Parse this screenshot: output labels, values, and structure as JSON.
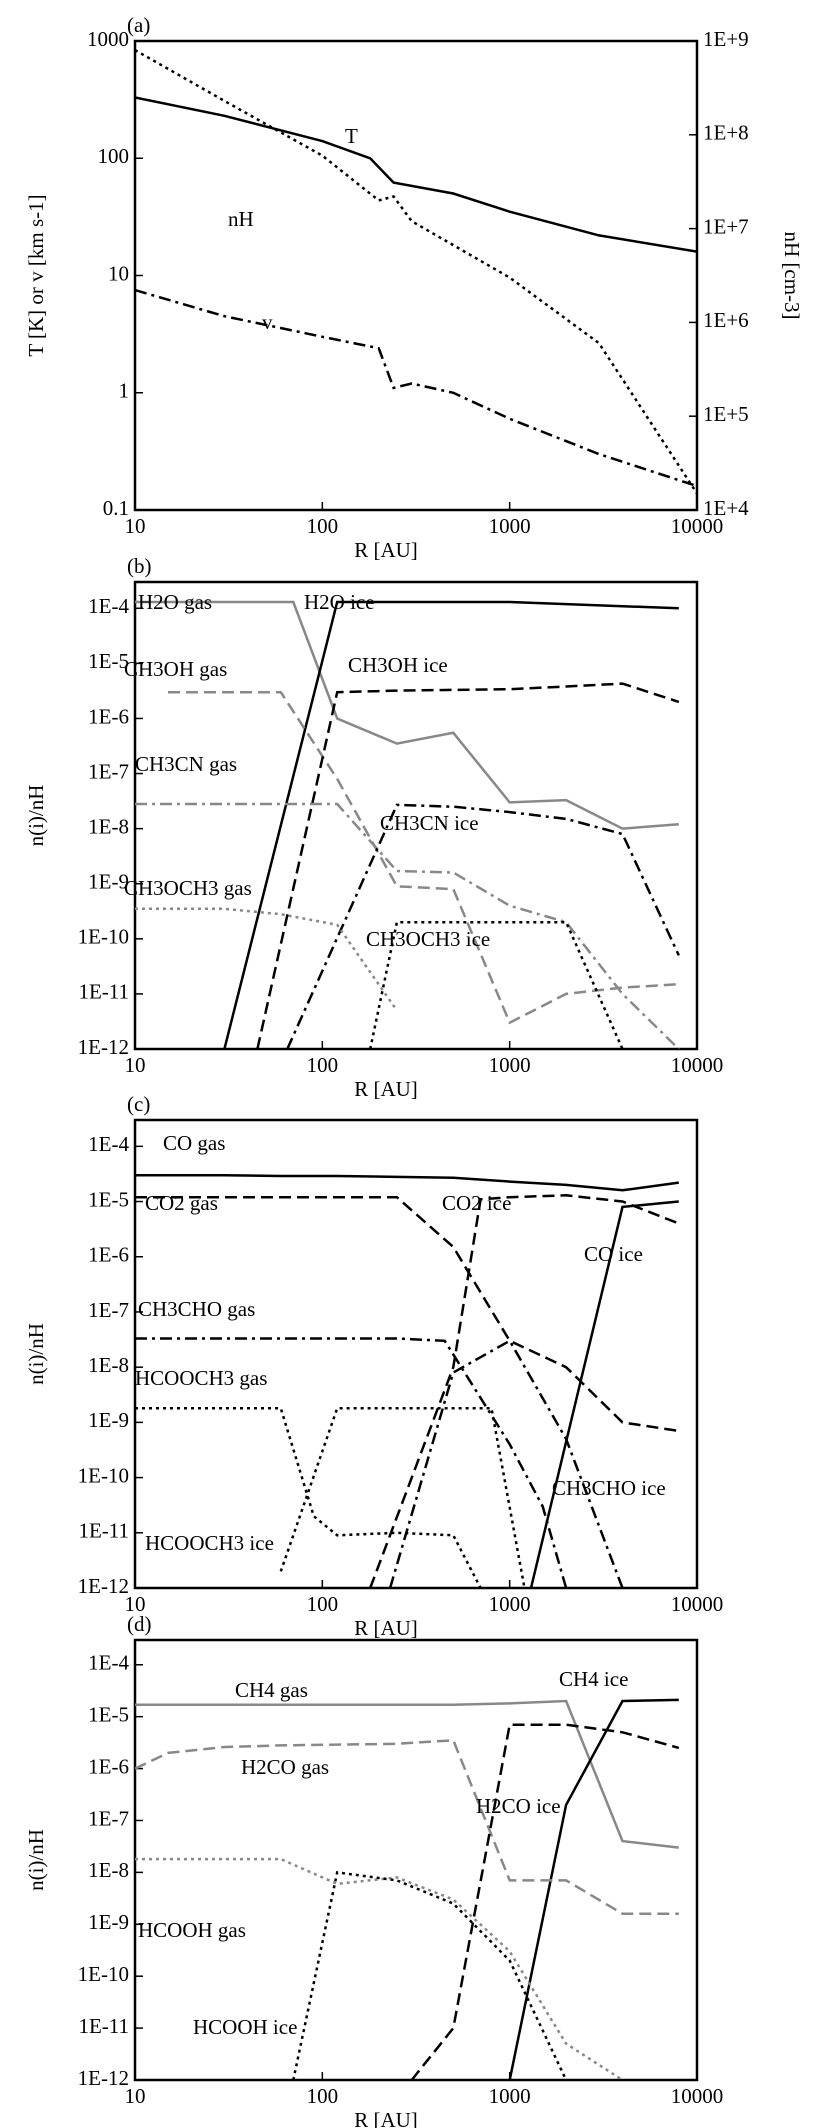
{
  "chart_data": [
    {
      "type": "line",
      "panel_label": "(a)",
      "x_label": "R [AU]",
      "y_label": "T [K] or v [km s-1]",
      "y2_label": "nH [cm-3]",
      "log_x": true,
      "log_y": true,
      "xlim": [
        10,
        10000
      ],
      "xticks": [
        10,
        100,
        1000,
        10000
      ],
      "ylim": [
        0.1,
        1000
      ],
      "yticks": [
        0.1,
        1,
        10,
        100,
        1000
      ],
      "y2lim": [
        10000,
        1000000000
      ],
      "y2ticks": [
        {
          "value": 10000,
          "label": "1E+4"
        },
        {
          "value": 100000,
          "label": "1E+5"
        },
        {
          "value": 1000000,
          "label": "1E+6"
        },
        {
          "value": 10000000,
          "label": "1E+7"
        },
        {
          "value": 100000000,
          "label": "1E+8"
        },
        {
          "value": 1000000000,
          "label": "1E+9"
        }
      ],
      "series": [
        {
          "name": "T",
          "color": "#000000",
          "label_color": "#000000",
          "dash": "solid",
          "x": [
            10,
            30,
            100,
            180,
            240,
            500,
            1000,
            3000,
            10000
          ],
          "values": [
            330,
            230,
            140,
            100,
            62,
            50,
            35,
            22,
            16
          ]
        },
        {
          "name": "nH",
          "color": "#000000",
          "label_color": "#000000",
          "dash": "dotted",
          "axis": "y2",
          "x": [
            10,
            30,
            100,
            200,
            240,
            300,
            1000,
            3000,
            10000
          ],
          "values": [
            800000000,
            230000000,
            60000000,
            20000000,
            22000000,
            12000000,
            3000000,
            600000,
            15000
          ]
        },
        {
          "name": "v",
          "color": "#000000",
          "label_color": "#000000",
          "dash": "dashdot",
          "x": [
            10,
            30,
            100,
            200,
            240,
            300,
            500,
            1000,
            3000,
            10000
          ],
          "values": [
            7.5,
            4.5,
            3,
            2.4,
            1.1,
            1.2,
            1,
            0.6,
            0.3,
            0.16
          ]
        }
      ]
    },
    {
      "type": "line",
      "panel_label": "(b)",
      "x_label": "R [AU]",
      "y_label": "n(i)/nH",
      "log_x": true,
      "log_y": true,
      "xlim": [
        10,
        10000
      ],
      "xticks": [
        10,
        100,
        1000,
        10000
      ],
      "ylim": [
        1e-12,
        0.0003
      ],
      "yticks": [
        {
          "value": 1e-12,
          "label": "1E-12"
        },
        {
          "value": 1e-11,
          "label": "1E-11"
        },
        {
          "value": 1e-10,
          "label": "1E-10"
        },
        {
          "value": 1e-09,
          "label": "1E-9"
        },
        {
          "value": 1e-08,
          "label": "1E-8"
        },
        {
          "value": 1e-07,
          "label": "1E-7"
        },
        {
          "value": 1e-06,
          "label": "1E-6"
        },
        {
          "value": 1e-05,
          "label": "1E-5"
        },
        {
          "value": 0.0001,
          "label": "1E-4"
        }
      ],
      "series": [
        {
          "name": "H2O gas",
          "color": "#888888",
          "label_color": "#888888",
          "dash": "solid",
          "x": [
            10,
            70,
            120,
            250,
            500,
            1000,
            2000,
            4000,
            8000
          ],
          "values": [
            0.00013,
            0.00013,
            1e-06,
            3.5e-07,
            5.5e-07,
            3e-08,
            3.3e-08,
            1e-08,
            1.2e-08
          ]
        },
        {
          "name": "H2O ice",
          "color": "#000000",
          "label_color": "#000000",
          "dash": "solid",
          "x": [
            30,
            120,
            1000,
            8000
          ],
          "values": [
            1e-12,
            0.00013,
            0.00013,
            0.0001
          ]
        },
        {
          "name": "CH3OH gas",
          "color": "#888888",
          "label_color": "#888888",
          "dash": "dashed",
          "x": [
            15,
            30,
            60,
            120,
            250,
            500,
            1000,
            2000,
            4000,
            8000
          ],
          "values": [
            3e-06,
            3e-06,
            3e-06,
            8e-08,
            9e-10,
            8e-10,
            3e-12,
            1e-11,
            1.3e-11,
            1.5e-11
          ]
        },
        {
          "name": "CH3OH ice",
          "color": "#000000",
          "label_color": "#000000",
          "dash": "dashed",
          "x": [
            45,
            120,
            250,
            500,
            1000,
            2000,
            4000,
            8000
          ],
          "values": [
            1e-12,
            3e-06,
            3.2e-06,
            3.3e-06,
            3.4e-06,
            3.8e-06,
            4.3e-06,
            2e-06
          ]
        },
        {
          "name": "CH3CN gas",
          "color": "#888888",
          "label_color": "#888888",
          "dash": "dashdot",
          "x": [
            10,
            30,
            60,
            120,
            250,
            500,
            1000,
            2000,
            4000,
            8000
          ],
          "values": [
            2.8e-08,
            2.8e-08,
            2.8e-08,
            2.8e-08,
            1.7e-09,
            1.6e-09,
            4e-10,
            2e-10,
            1e-11,
            1e-12
          ]
        },
        {
          "name": "CH3CN ice",
          "color": "#000000",
          "label_color": "#000000",
          "dash": "dashdot",
          "x": [
            65,
            250,
            500,
            1000,
            2000,
            4000,
            8000
          ],
          "values": [
            1e-12,
            2.7e-08,
            2.5e-08,
            2e-08,
            1.5e-08,
            8e-09,
            5e-11
          ]
        },
        {
          "name": "CH3OCH3 gas",
          "color": "#888888",
          "label_color": "#888888",
          "dash": "dotted",
          "x": [
            10,
            30,
            60,
            120,
            250
          ],
          "values": [
            3.5e-10,
            3.5e-10,
            2.8e-10,
            1.8e-10,
            5e-12
          ]
        },
        {
          "name": "CH3OCH3 ice",
          "color": "#000000",
          "label_color": "#000000",
          "dash": "dotted",
          "x": [
            180,
            250,
            500,
            1000,
            2000,
            4000
          ],
          "values": [
            1e-12,
            2e-10,
            2e-10,
            2e-10,
            2e-10,
            1e-12
          ]
        }
      ]
    },
    {
      "type": "line",
      "panel_label": "(c)",
      "x_label": "R [AU]",
      "y_label": "n(i)/nH",
      "log_x": true,
      "log_y": true,
      "xlim": [
        10,
        10000
      ],
      "xticks": [
        10,
        100,
        1000,
        10000
      ],
      "ylim": [
        1e-12,
        0.0003
      ],
      "yticks": [
        {
          "value": 1e-12,
          "label": "1E-12"
        },
        {
          "value": 1e-11,
          "label": "1E-11"
        },
        {
          "value": 1e-10,
          "label": "1E-10"
        },
        {
          "value": 1e-09,
          "label": "1E-9"
        },
        {
          "value": 1e-08,
          "label": "1E-8"
        },
        {
          "value": 1e-07,
          "label": "1E-7"
        },
        {
          "value": 1e-06,
          "label": "1E-6"
        },
        {
          "value": 1e-05,
          "label": "1E-5"
        },
        {
          "value": 0.0001,
          "label": "1E-4"
        }
      ],
      "series": [
        {
          "name": "CO gas",
          "color": "#000000",
          "label_color": "#888888",
          "dash": "solid",
          "x": [
            10,
            30,
            60,
            120,
            250,
            500,
            1000,
            2000,
            4000,
            8000
          ],
          "values": [
            3e-05,
            3e-05,
            2.9e-05,
            2.9e-05,
            2.8e-05,
            2.7e-05,
            2.3e-05,
            2e-05,
            1.6e-05,
            2.2e-05
          ]
        },
        {
          "name": "CO2 gas",
          "color": "#000000",
          "label_color": "#888888",
          "dash": "dashed",
          "x": [
            10,
            30,
            60,
            120,
            250,
            500,
            1000,
            2000,
            4000,
            8000
          ],
          "values": [
            1.2e-05,
            1.2e-05,
            1.2e-05,
            1.2e-05,
            1.2e-05,
            1.5e-06,
            3e-08,
            1e-08,
            1e-09,
            7e-10
          ]
        },
        {
          "name": "CO2 ice",
          "color": "#000000",
          "label_color": "#000000",
          "dash": "dashed",
          "x": [
            180,
            500,
            700,
            1000,
            2000,
            4000,
            8000
          ],
          "values": [
            1e-12,
            1e-08,
            1.1e-05,
            1.2e-05,
            1.3e-05,
            1e-05,
            4e-06
          ]
        },
        {
          "name": "CO ice",
          "color": "#000000",
          "label_color": "#000000",
          "dash": "solid",
          "x": [
            1300,
            4000,
            8000
          ],
          "values": [
            1e-12,
            8e-06,
            1e-05
          ]
        },
        {
          "name": "CH3CHO gas",
          "color": "#000000",
          "label_color": "#888888",
          "dash": "dashdot",
          "x": [
            10,
            30,
            60,
            120,
            250,
            450,
            1000,
            1500,
            2000
          ],
          "values": [
            3.3e-08,
            3.3e-08,
            3.3e-08,
            3.3e-08,
            3.3e-08,
            3e-08,
            4e-10,
            3e-11,
            1e-12
          ]
        },
        {
          "name": "CH3CHO ice",
          "color": "#000000",
          "label_color": "#000000",
          "dash": "dashdot",
          "x": [
            230,
            500,
            1000,
            2000,
            4000
          ],
          "values": [
            1e-12,
            8e-09,
            3e-08,
            5e-10,
            1e-12
          ]
        },
        {
          "name": "HCOOCH3 gas",
          "color": "#000000",
          "label_color": "#888888",
          "dash": "dotted",
          "x": [
            10,
            30,
            60,
            90,
            120,
            250,
            500,
            700
          ],
          "values": [
            1.8e-09,
            1.8e-09,
            1.8e-09,
            2e-11,
            9e-12,
            1e-11,
            9e-12,
            1e-12
          ]
        },
        {
          "name": "HCOOCH3 ice",
          "color": "#000000",
          "label_color": "#000000",
          "dash": "dotted",
          "x": [
            60,
            120,
            250,
            500,
            800,
            1200
          ],
          "values": [
            2e-12,
            1.8e-09,
            1.8e-09,
            1.8e-09,
            1.8e-09,
            1e-12
          ]
        }
      ]
    },
    {
      "type": "line",
      "panel_label": "(d)",
      "x_label": "R [AU]",
      "y_label": "n(i)/nH",
      "log_x": true,
      "log_y": true,
      "xlim": [
        10,
        10000
      ],
      "xticks": [
        10,
        100,
        1000,
        10000
      ],
      "ylim": [
        1e-12,
        0.0003
      ],
      "yticks": [
        {
          "value": 1e-12,
          "label": "1E-12"
        },
        {
          "value": 1e-11,
          "label": "1E-11"
        },
        {
          "value": 1e-10,
          "label": "1E-10"
        },
        {
          "value": 1e-09,
          "label": "1E-9"
        },
        {
          "value": 1e-08,
          "label": "1E-8"
        },
        {
          "value": 1e-07,
          "label": "1E-7"
        },
        {
          "value": 1e-06,
          "label": "1E-6"
        },
        {
          "value": 1e-05,
          "label": "1E-5"
        },
        {
          "value": 0.0001,
          "label": "1E-4"
        }
      ],
      "series": [
        {
          "name": "CH4 gas",
          "color": "#888888",
          "label_color": "#888888",
          "dash": "solid",
          "x": [
            10,
            30,
            60,
            120,
            250,
            500,
            1000,
            2000,
            4000,
            8000
          ],
          "values": [
            1.7e-05,
            1.7e-05,
            1.7e-05,
            1.7e-05,
            1.7e-05,
            1.7e-05,
            1.8e-05,
            2e-05,
            4e-08,
            3e-08
          ]
        },
        {
          "name": "CH4 ice",
          "color": "#000000",
          "label_color": "#000000",
          "dash": "solid",
          "x": [
            1000,
            2000,
            4000,
            8000
          ],
          "values": [
            1e-12,
            2e-07,
            2e-05,
            2.1e-05
          ]
        },
        {
          "name": "H2CO gas",
          "color": "#888888",
          "label_color": "#888888",
          "dash": "dashed",
          "x": [
            10,
            15,
            30,
            60,
            120,
            250,
            500,
            1000,
            2000,
            4000,
            8000
          ],
          "values": [
            1e-06,
            2e-06,
            2.6e-06,
            2.8e-06,
            2.9e-06,
            3e-06,
            3.5e-06,
            7e-09,
            7e-09,
            1.6e-09,
            1.6e-09
          ]
        },
        {
          "name": "H2CO ice",
          "color": "#000000",
          "label_color": "#000000",
          "dash": "dashed",
          "x": [
            300,
            500,
            1000,
            2000,
            4000,
            8000
          ],
          "values": [
            1e-12,
            1e-11,
            7e-06,
            7e-06,
            5e-06,
            2.5e-06
          ]
        },
        {
          "name": "HCOOH gas",
          "color": "#888888",
          "label_color": "#888888",
          "dash": "dotted",
          "x": [
            10,
            30,
            60,
            120,
            250,
            500,
            1000,
            2000,
            4000
          ],
          "values": [
            1.8e-08,
            1.8e-08,
            1.8e-08,
            6e-09,
            8e-09,
            3e-09,
            3e-10,
            5e-12,
            1e-12
          ]
        },
        {
          "name": "HCOOH ice",
          "color": "#000000",
          "label_color": "#000000",
          "dash": "dotted",
          "x": [
            70,
            120,
            250,
            500,
            1000,
            2000
          ],
          "values": [
            1e-12,
            1e-08,
            7e-09,
            2.5e-09,
            2e-10,
            1e-12
          ]
        }
      ]
    }
  ]
}
